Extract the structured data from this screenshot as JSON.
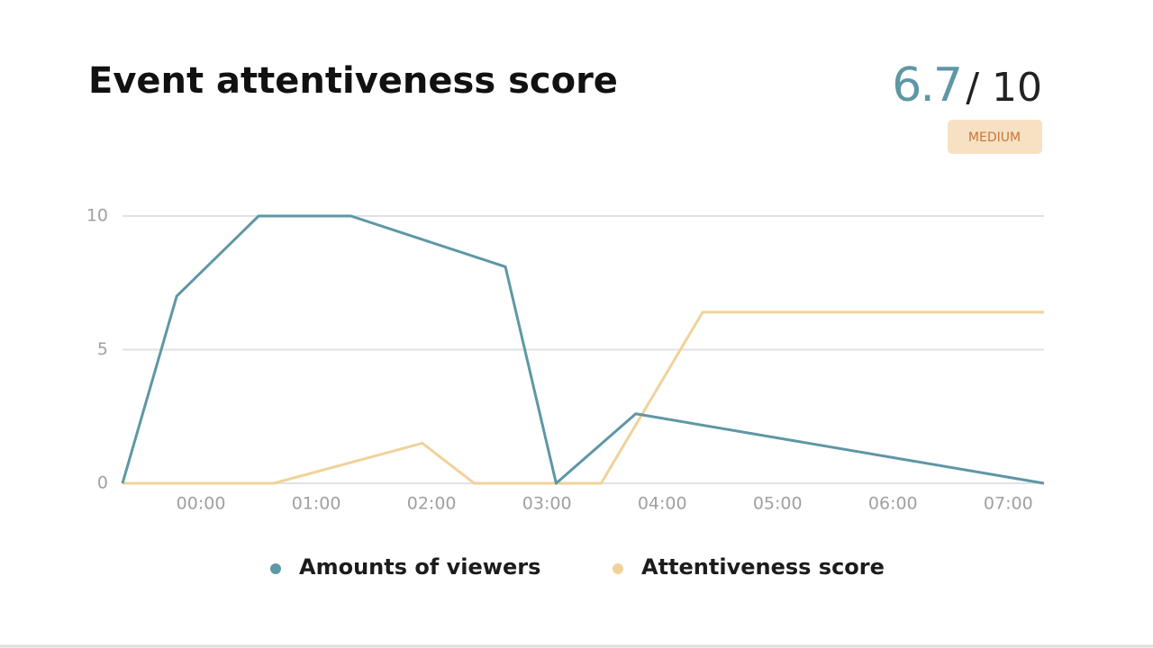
{
  "header": {
    "title": "Event attentiveness score",
    "score": 6.7,
    "score_max": "/ 10",
    "level": "MEDIUM"
  },
  "chart_data": {
    "type": "line",
    "x": [
      -0.68,
      -0.21,
      0.5,
      1.3,
      2.64,
      3.08,
      3.77,
      7.31
    ],
    "series": [
      {
        "name": "Amounts of viewers",
        "color": "#5e97a5",
        "x": [
          -0.68,
          -0.21,
          0.5,
          1.3,
          2.64,
          3.08,
          3.77,
          7.31
        ],
        "values": [
          0,
          7,
          10,
          10,
          8.1,
          0,
          2.6,
          0
        ]
      },
      {
        "name": "Attentiveness score",
        "color": "#f0d29a",
        "x": [
          -0.68,
          0.63,
          1.92,
          2.37,
          3.47,
          4.35,
          7.31
        ],
        "values": [
          0,
          0,
          1.5,
          0,
          0,
          6.4,
          6.4
        ]
      }
    ],
    "xlim": [
      -0.68,
      7.31
    ],
    "xticks": [
      {
        "value": 0,
        "label": "00:00"
      },
      {
        "value": 1,
        "label": "01:00"
      },
      {
        "value": 2,
        "label": "02:00"
      },
      {
        "value": 3,
        "label": "03:00"
      },
      {
        "value": 4,
        "label": "04:00"
      },
      {
        "value": 5,
        "label": "05:00"
      },
      {
        "value": 6,
        "label": "06:00"
      },
      {
        "value": 7,
        "label": "07:00"
      }
    ],
    "ylim": [
      0,
      10
    ],
    "yticks": [
      0,
      5,
      10
    ],
    "grid": true,
    "legend": "bottom"
  }
}
